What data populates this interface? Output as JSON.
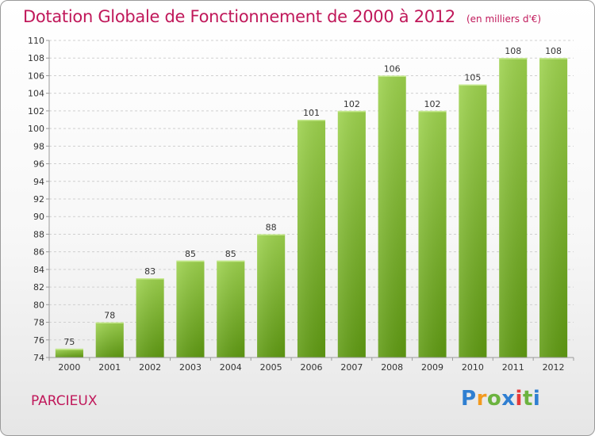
{
  "header": {
    "title": "Dotation Globale de Fonctionnement de 2000 à 2012",
    "subtitle": "(en milliers d'€)"
  },
  "footer": {
    "commune": "PARCIEUX",
    "logo": {
      "letters": [
        "P",
        "r",
        "o",
        "x",
        "i",
        "t",
        "i"
      ],
      "colors": [
        "#2f7fd1",
        "#f39a1f",
        "#6cb33f",
        "#2f7fd1",
        "#e63a3a",
        "#6cb33f",
        "#2f7fd1"
      ]
    }
  },
  "chart_data": {
    "type": "bar",
    "title": "Dotation Globale de Fonctionnement de 2000 à 2012",
    "subtitle": "(en milliers d'€)",
    "categories": [
      "2000",
      "2001",
      "2002",
      "2003",
      "2004",
      "2005",
      "2006",
      "2007",
      "2008",
      "2009",
      "2010",
      "2011",
      "2012"
    ],
    "values": [
      75,
      78,
      83,
      85,
      85,
      88,
      101,
      102,
      106,
      102,
      105,
      108,
      108
    ],
    "ylim": [
      74,
      110
    ],
    "yticks": [
      74,
      76,
      78,
      80,
      82,
      84,
      86,
      88,
      90,
      92,
      94,
      96,
      98,
      100,
      102,
      104,
      106,
      108,
      110
    ],
    "grid": true,
    "bar_color_top": "#9dd24d",
    "bar_color_bottom": "#5f9a12",
    "axis_color": "#9a9a9a",
    "grid_color": "#d0d0d0"
  }
}
